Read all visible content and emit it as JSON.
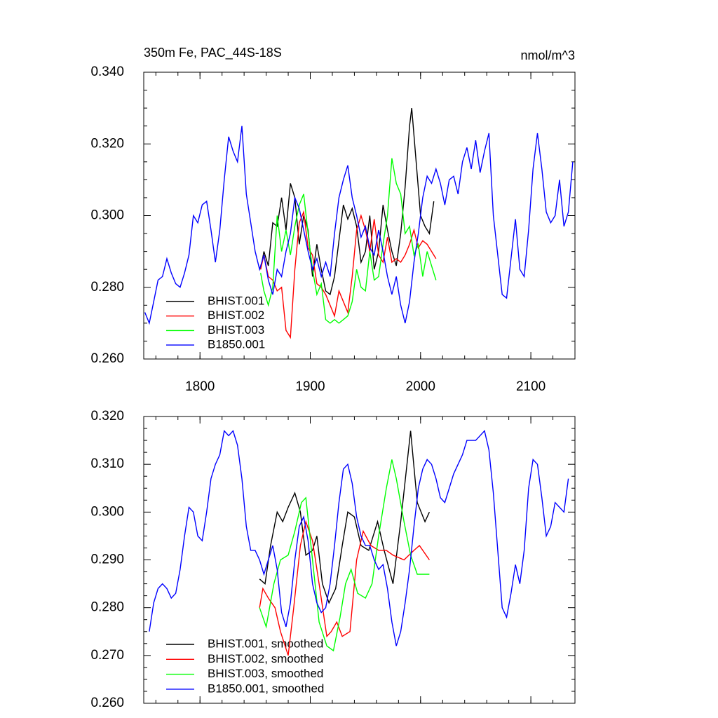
{
  "chart_data": [
    {
      "type": "line",
      "title": "350m Fe, PAC_44S-18S",
      "units": "nmol/m^3",
      "xlim": [
        1749,
        2140
      ],
      "ylim": [
        0.26,
        0.34
      ],
      "xticks": [
        1800,
        1900,
        2000,
        2100
      ],
      "xtick_labels_shown": true,
      "yticks": [
        {
          "value": 0.26,
          "label": "0.260"
        },
        {
          "value": 0.28,
          "label": "0.280"
        },
        {
          "value": 0.3,
          "label": "0.300"
        },
        {
          "value": 0.32,
          "label": "0.320"
        },
        {
          "value": 0.34,
          "label": "0.340"
        }
      ],
      "series": [
        {
          "name": "BHIST.001",
          "color": "#000000",
          "x": [
            1855,
            1858,
            1862,
            1866,
            1870,
            1874,
            1878,
            1882,
            1886,
            1890,
            1894,
            1898,
            1902,
            1906,
            1910,
            1914,
            1918,
            1922,
            1926,
            1930,
            1934,
            1938,
            1942,
            1946,
            1950,
            1954,
            1958,
            1962,
            1966,
            1970,
            1974,
            1978,
            1982,
            1986,
            1990,
            1992,
            1996,
            2000,
            2004,
            2008,
            2012
          ],
          "values": [
            0.285,
            0.29,
            0.286,
            0.298,
            0.297,
            0.305,
            0.296,
            0.309,
            0.305,
            0.292,
            0.3,
            0.296,
            0.283,
            0.292,
            0.285,
            0.279,
            0.278,
            0.283,
            0.293,
            0.303,
            0.299,
            0.302,
            0.297,
            0.287,
            0.29,
            0.3,
            0.285,
            0.29,
            0.303,
            0.296,
            0.29,
            0.286,
            0.295,
            0.308,
            0.325,
            0.33,
            0.315,
            0.3,
            0.297,
            0.295,
            0.304
          ]
        },
        {
          "name": "BHIST.002",
          "color": "#ff0000",
          "x": [
            1855,
            1858,
            1862,
            1866,
            1870,
            1874,
            1878,
            1882,
            1886,
            1890,
            1894,
            1898,
            1902,
            1906,
            1910,
            1914,
            1918,
            1922,
            1926,
            1930,
            1934,
            1938,
            1942,
            1946,
            1950,
            1954,
            1958,
            1962,
            1966,
            1970,
            1974,
            1978,
            1982,
            1986,
            1990,
            1994,
            1998,
            2002,
            2006,
            2010,
            2014
          ],
          "values": [
            0.285,
            0.289,
            0.283,
            0.282,
            0.279,
            0.28,
            0.268,
            0.266,
            0.285,
            0.298,
            0.301,
            0.291,
            0.289,
            0.281,
            0.28,
            0.278,
            0.275,
            0.272,
            0.279,
            0.276,
            0.273,
            0.283,
            0.296,
            0.3,
            0.296,
            0.29,
            0.299,
            0.289,
            0.287,
            0.294,
            0.287,
            0.288,
            0.287,
            0.289,
            0.292,
            0.296,
            0.291,
            0.293,
            0.292,
            0.29,
            0.288
          ]
        },
        {
          "name": "BHIST.003",
          "color": "#00ff00",
          "x": [
            1855,
            1858,
            1862,
            1866,
            1870,
            1874,
            1878,
            1882,
            1886,
            1890,
            1894,
            1898,
            1902,
            1906,
            1910,
            1914,
            1918,
            1922,
            1926,
            1930,
            1934,
            1938,
            1942,
            1946,
            1950,
            1954,
            1958,
            1962,
            1966,
            1970,
            1974,
            1978,
            1982,
            1986,
            1990,
            1994,
            1998,
            2002,
            2006,
            2010,
            2014
          ],
          "values": [
            0.284,
            0.279,
            0.275,
            0.28,
            0.3,
            0.29,
            0.296,
            0.289,
            0.297,
            0.303,
            0.306,
            0.295,
            0.285,
            0.278,
            0.281,
            0.271,
            0.27,
            0.271,
            0.27,
            0.271,
            0.272,
            0.276,
            0.285,
            0.28,
            0.279,
            0.29,
            0.282,
            0.283,
            0.292,
            0.3,
            0.316,
            0.309,
            0.306,
            0.295,
            0.297,
            0.289,
            0.292,
            0.283,
            0.29,
            0.286,
            0.282
          ]
        },
        {
          "name": "B1850.001",
          "color": "#0000ff",
          "x": [
            1750,
            1754,
            1758,
            1762,
            1766,
            1770,
            1774,
            1778,
            1782,
            1786,
            1790,
            1794,
            1798,
            1802,
            1806,
            1810,
            1814,
            1818,
            1822,
            1826,
            1830,
            1834,
            1838,
            1842,
            1846,
            1850,
            1854,
            1858,
            1862,
            1866,
            1870,
            1874,
            1878,
            1882,
            1886,
            1890,
            1894,
            1898,
            1902,
            1906,
            1910,
            1914,
            1918,
            1922,
            1926,
            1930,
            1934,
            1938,
            1942,
            1946,
            1950,
            1954,
            1958,
            1962,
            1966,
            1970,
            1974,
            1978,
            1982,
            1986,
            1990,
            1994,
            1998,
            2002,
            2006,
            2010,
            2014,
            2018,
            2022,
            2026,
            2030,
            2034,
            2038,
            2042,
            2046,
            2050,
            2054,
            2058,
            2062,
            2066,
            2070,
            2074,
            2078,
            2082,
            2086,
            2090,
            2094,
            2098,
            2102,
            2106,
            2110,
            2114,
            2118,
            2122,
            2126,
            2130,
            2134,
            2138
          ],
          "values": [
            0.273,
            0.27,
            0.276,
            0.282,
            0.283,
            0.288,
            0.284,
            0.281,
            0.28,
            0.284,
            0.289,
            0.3,
            0.298,
            0.303,
            0.304,
            0.296,
            0.287,
            0.296,
            0.31,
            0.322,
            0.318,
            0.315,
            0.325,
            0.306,
            0.298,
            0.29,
            0.285,
            0.289,
            0.282,
            0.278,
            0.285,
            0.283,
            0.29,
            0.295,
            0.305,
            0.302,
            0.296,
            0.29,
            0.285,
            0.288,
            0.283,
            0.287,
            0.283,
            0.295,
            0.305,
            0.31,
            0.314,
            0.305,
            0.3,
            0.294,
            0.297,
            0.291,
            0.289,
            0.296,
            0.29,
            0.283,
            0.278,
            0.283,
            0.275,
            0.27,
            0.276,
            0.287,
            0.295,
            0.305,
            0.311,
            0.309,
            0.313,
            0.309,
            0.303,
            0.31,
            0.311,
            0.306,
            0.315,
            0.319,
            0.313,
            0.321,
            0.312,
            0.318,
            0.323,
            0.3,
            0.289,
            0.278,
            0.277,
            0.288,
            0.299,
            0.285,
            0.283,
            0.296,
            0.313,
            0.323,
            0.313,
            0.301,
            0.298,
            0.3,
            0.31,
            0.297,
            0.301,
            0.315
          ]
        }
      ]
    },
    {
      "type": "line",
      "xlim": [
        1749,
        2140
      ],
      "ylim": [
        0.26,
        0.32
      ],
      "xticks": [
        1800,
        1900,
        2000,
        2100
      ],
      "xtick_labels_shown": false,
      "yticks": [
        {
          "value": 0.26,
          "label": "0.260"
        },
        {
          "value": 0.27,
          "label": "0.270"
        },
        {
          "value": 0.28,
          "label": "0.280"
        },
        {
          "value": 0.29,
          "label": "0.290"
        },
        {
          "value": 0.3,
          "label": "0.300"
        },
        {
          "value": 0.31,
          "label": "0.310"
        },
        {
          "value": 0.32,
          "label": "0.320"
        }
      ],
      "series": [
        {
          "name": "BHIST.001, smoothed",
          "color": "#000000",
          "x": [
            1854,
            1859,
            1864,
            1870,
            1875,
            1880,
            1886,
            1891,
            1896,
            1902,
            1906,
            1911,
            1917,
            1923,
            1929,
            1934,
            1940,
            1946,
            1953,
            1961,
            1967,
            1975,
            1982,
            1991,
            1997,
            2004,
            2008
          ],
          "values": [
            0.286,
            0.285,
            0.293,
            0.3,
            0.298,
            0.301,
            0.304,
            0.3,
            0.291,
            0.292,
            0.295,
            0.285,
            0.281,
            0.284,
            0.293,
            0.3,
            0.299,
            0.293,
            0.292,
            0.298,
            0.292,
            0.285,
            0.298,
            0.317,
            0.302,
            0.298,
            0.3
          ]
        },
        {
          "name": "BHIST.002, smoothed",
          "color": "#ff0000",
          "x": [
            1854,
            1857,
            1862,
            1868,
            1873,
            1880,
            1885,
            1891,
            1896,
            1902,
            1908,
            1915,
            1919,
            1924,
            1929,
            1936,
            1942,
            1948,
            1955,
            1962,
            1969,
            1975,
            1985,
            1994,
            1999,
            2008
          ],
          "values": [
            0.28,
            0.284,
            0.282,
            0.28,
            0.275,
            0.27,
            0.28,
            0.293,
            0.298,
            0.294,
            0.285,
            0.274,
            0.275,
            0.277,
            0.274,
            0.275,
            0.29,
            0.296,
            0.293,
            0.292,
            0.292,
            0.291,
            0.29,
            0.292,
            0.293,
            0.29
          ]
        },
        {
          "name": "BHIST.003, smoothed",
          "color": "#00ff00",
          "x": [
            1854,
            1860,
            1867,
            1873,
            1880,
            1886,
            1892,
            1896,
            1902,
            1908,
            1915,
            1921,
            1927,
            1932,
            1937,
            1943,
            1950,
            1956,
            1962,
            1969,
            1974,
            1978,
            1985,
            1991,
            1997,
            2004,
            2008
          ],
          "values": [
            0.28,
            0.276,
            0.285,
            0.29,
            0.291,
            0.296,
            0.302,
            0.303,
            0.29,
            0.277,
            0.272,
            0.271,
            0.278,
            0.285,
            0.288,
            0.283,
            0.282,
            0.285,
            0.295,
            0.305,
            0.311,
            0.307,
            0.298,
            0.291,
            0.287,
            0.287,
            0.287
          ]
        },
        {
          "name": "B1850.001, smoothed",
          "color": "#0000ff",
          "x": [
            1754,
            1758,
            1762,
            1766,
            1770,
            1774,
            1778,
            1782,
            1786,
            1790,
            1794,
            1798,
            1802,
            1806,
            1810,
            1814,
            1818,
            1822,
            1826,
            1830,
            1834,
            1838,
            1842,
            1846,
            1850,
            1854,
            1858,
            1862,
            1866,
            1870,
            1874,
            1878,
            1882,
            1886,
            1890,
            1894,
            1898,
            1902,
            1906,
            1910,
            1914,
            1918,
            1922,
            1926,
            1930,
            1934,
            1938,
            1942,
            1946,
            1950,
            1954,
            1958,
            1962,
            1966,
            1970,
            1974,
            1978,
            1982,
            1986,
            1990,
            1994,
            1998,
            2002,
            2006,
            2010,
            2014,
            2018,
            2022,
            2026,
            2030,
            2034,
            2038,
            2042,
            2046,
            2050,
            2054,
            2058,
            2062,
            2066,
            2070,
            2074,
            2078,
            2082,
            2086,
            2090,
            2094,
            2098,
            2102,
            2106,
            2110,
            2114,
            2118,
            2122,
            2126,
            2130,
            2134
          ],
          "values": [
            0.275,
            0.281,
            0.284,
            0.285,
            0.284,
            0.282,
            0.283,
            0.288,
            0.295,
            0.301,
            0.3,
            0.295,
            0.294,
            0.3,
            0.307,
            0.31,
            0.312,
            0.317,
            0.316,
            0.317,
            0.314,
            0.307,
            0.297,
            0.292,
            0.292,
            0.29,
            0.287,
            0.29,
            0.293,
            0.288,
            0.279,
            0.276,
            0.281,
            0.29,
            0.297,
            0.299,
            0.294,
            0.285,
            0.281,
            0.279,
            0.28,
            0.285,
            0.293,
            0.302,
            0.309,
            0.31,
            0.306,
            0.299,
            0.295,
            0.293,
            0.293,
            0.29,
            0.288,
            0.289,
            0.284,
            0.277,
            0.272,
            0.275,
            0.281,
            0.288,
            0.297,
            0.305,
            0.309,
            0.311,
            0.31,
            0.307,
            0.303,
            0.302,
            0.305,
            0.308,
            0.31,
            0.312,
            0.315,
            0.315,
            0.315,
            0.316,
            0.317,
            0.313,
            0.304,
            0.292,
            0.28,
            0.278,
            0.283,
            0.289,
            0.285,
            0.292,
            0.305,
            0.311,
            0.31,
            0.303,
            0.295,
            0.297,
            0.302,
            0.301,
            0.3,
            0.307
          ]
        }
      ]
    }
  ]
}
